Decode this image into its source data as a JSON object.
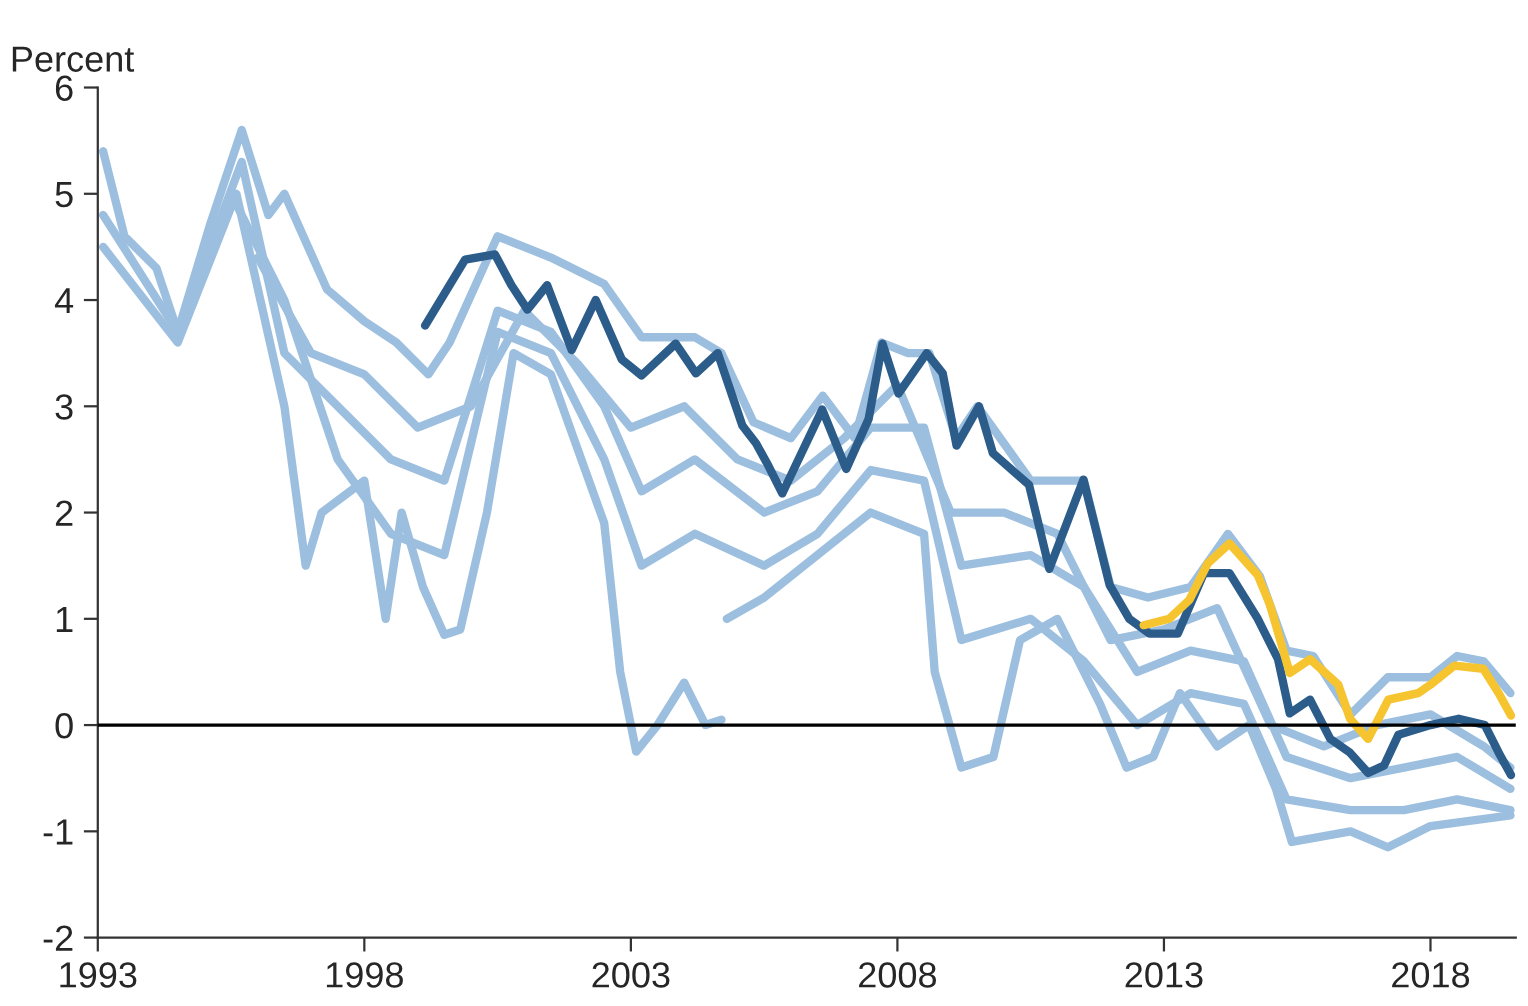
{
  "chart_data": {
    "type": "line",
    "ylabel": "Percent",
    "xlim": [
      1993,
      2019.6
    ],
    "xticks": [
      1993,
      1998,
      2003,
      2008,
      2013,
      2018
    ],
    "ylim": [
      -2,
      6
    ],
    "yticks": [
      {
        "value": -2,
        "label": "-2"
      },
      {
        "value": -1,
        "label": "-1"
      },
      0,
      1,
      2,
      3,
      4,
      5,
      6
    ],
    "grid": false,
    "legend": false,
    "marker": "none",
    "line_style": "solid",
    "ref_lines": [
      {
        "axis": "y",
        "value": 0,
        "color": "#000000"
      }
    ],
    "series": [
      {
        "color": "#9dbfdf",
        "x": [
          1993.1,
          1993.5,
          1994.1,
          1994.5,
          1995.1,
          1995.7,
          1996.2,
          1996.5,
          1997.3,
          1998.0,
          1998.6,
          1999.2,
          1999.6,
          2000.5,
          2001.5,
          2002.5,
          2003.2,
          2004.2,
          2004.7,
          2005.3,
          2006.0,
          2006.6,
          2007.2,
          2007.7,
          2008.2,
          2008.6,
          2009.1,
          2009.5,
          2010.5,
          2011.5,
          2012.0,
          2012.7,
          2013.5,
          2014.2,
          2014.8,
          2015.3,
          2015.8,
          2016.5,
          2017.2,
          2018.0,
          2018.5,
          2019.0,
          2019.5
        ],
        "values": [
          5.4,
          4.6,
          4.3,
          3.7,
          4.7,
          5.6,
          4.8,
          5.0,
          4.1,
          3.8,
          3.6,
          3.3,
          3.6,
          4.6,
          4.4,
          4.15,
          3.65,
          3.65,
          3.5,
          2.85,
          2.7,
          3.1,
          2.7,
          3.6,
          3.5,
          3.5,
          2.7,
          3.0,
          2.3,
          2.3,
          1.3,
          1.2,
          1.3,
          1.8,
          1.4,
          0.7,
          0.65,
          0.1,
          0.45,
          0.45,
          0.65,
          0.6,
          0.3
        ]
      },
      {
        "color": "#9dbfdf",
        "x": [
          1993.1,
          1994.5,
          1995.6,
          1996.5,
          1996.9,
          1997.2,
          1998.0,
          1998.4,
          1998.7,
          1999.1,
          1999.5,
          1999.8,
          2000.3,
          2000.8,
          2001.5,
          2002.0,
          2002.5,
          2002.8,
          2003.1,
          2003.5,
          2004.0,
          2004.4,
          2004.7
        ],
        "values": [
          4.5,
          3.6,
          5.0,
          3.0,
          1.5,
          2.0,
          2.3,
          1.0,
          2.0,
          1.3,
          0.85,
          0.9,
          2.0,
          3.5,
          3.3,
          2.6,
          1.9,
          0.5,
          -0.25,
          0.0,
          0.4,
          0.0,
          0.05
        ]
      },
      {
        "color": "#9dbfdf",
        "x": [
          2004.8,
          2005.5,
          2006.5,
          2007.5,
          2008.5,
          2008.7,
          2009.2,
          2009.8,
          2010.3,
          2011.0,
          2011.8,
          2012.3,
          2012.8,
          2013.3,
          2014.0,
          2014.6,
          2015.1,
          2015.4,
          2016.5,
          2017.2,
          2018.0,
          2019.5
        ],
        "values": [
          1.0,
          1.2,
          1.6,
          2.0,
          1.8,
          0.5,
          -0.4,
          -0.3,
          0.8,
          1.0,
          0.2,
          -0.4,
          -0.3,
          0.3,
          -0.2,
          0.0,
          -0.6,
          -1.1,
          -1.0,
          -1.15,
          -0.95,
          -0.85
        ]
      },
      {
        "color": "#9dbfdf",
        "x": [
          1993.1,
          1994.5,
          1995.7,
          1996.5,
          1997.5,
          1998.5,
          1999.5,
          2000.5,
          2001.5,
          2002.5,
          2003.2,
          2004.2,
          2005.5,
          2006.5,
          2007.5,
          2008.5,
          2009.2,
          2010.5,
          2011.5,
          2012.5,
          2013.5,
          2014.5,
          2015.3,
          2016.5,
          2017.5,
          2018.5,
          2019.5
        ],
        "values": [
          4.8,
          3.7,
          5.3,
          3.5,
          3.0,
          2.5,
          2.3,
          3.9,
          3.7,
          3.0,
          2.2,
          2.5,
          2.0,
          2.2,
          2.8,
          2.8,
          1.5,
          1.6,
          1.3,
          0.5,
          0.7,
          0.6,
          -0.3,
          -0.5,
          -0.4,
          -0.3,
          -0.6
        ]
      },
      {
        "color": "#9dbfdf",
        "x": [
          1995.5,
          1996.5,
          1997.5,
          1998.5,
          1999.5,
          2000.5,
          2001.5,
          2002.5,
          2003.2,
          2004.2,
          2005.5,
          2006.5,
          2007.5,
          2008.5,
          2009.2,
          2010.5,
          2011.5,
          2012.5,
          2013.5,
          2014.5,
          2015.3,
          2016.5,
          2017.5,
          2018.5,
          2019.5
        ],
        "values": [
          5.0,
          4.0,
          2.5,
          1.8,
          1.6,
          3.7,
          3.5,
          2.5,
          1.5,
          1.8,
          1.5,
          1.8,
          2.4,
          2.3,
          0.8,
          1.0,
          0.6,
          0.0,
          0.3,
          0.2,
          -0.7,
          -0.8,
          -0.8,
          -0.7,
          -0.8
        ]
      },
      {
        "color": "#9dbfdf",
        "x": [
          1996,
          1997,
          1998,
          1999,
          2000,
          2001,
          2002,
          2003,
          2004,
          2005,
          2006,
          2007,
          2008,
          2009,
          2010,
          2011,
          2012,
          2013,
          2014,
          2015,
          2016,
          2017,
          2018,
          2019,
          2019.5
        ],
        "values": [
          4.4,
          3.5,
          3.3,
          2.8,
          3.0,
          3.9,
          3.4,
          2.8,
          3.0,
          2.5,
          2.3,
          2.7,
          3.2,
          2.0,
          2.0,
          1.8,
          0.8,
          0.9,
          1.1,
          0.0,
          -0.2,
          0.0,
          0.1,
          -0.2,
          -0.4
        ]
      },
      {
        "color": "#2c5d8a",
        "x": [
          1999.14,
          1999.89,
          2000.45,
          2000.76,
          2001.06,
          2001.43,
          2001.89,
          2002.34,
          2002.83,
          2003.2,
          2003.84,
          2004.22,
          2004.63,
          2005.09,
          2005.35,
          2005.58,
          2005.84,
          2006.59,
          2007.04,
          2007.46,
          2007.72,
          2008.02,
          2008.55,
          2008.85,
          2009.11,
          2009.53,
          2009.79,
          2010.47,
          2010.85,
          2011.49,
          2011.98,
          2012.35,
          2012.73,
          2013.26,
          2013.75,
          2014.23,
          2014.76,
          2015.14,
          2015.36,
          2015.74,
          2016.12,
          2016.49,
          2016.83,
          2017.13,
          2017.4,
          2018.0,
          2018.53,
          2019.02,
          2019.28,
          2019.51
        ],
        "values": [
          3.76,
          4.38,
          4.43,
          4.14,
          3.91,
          4.14,
          3.53,
          4.0,
          3.44,
          3.29,
          3.59,
          3.31,
          3.5,
          2.82,
          2.65,
          2.44,
          2.18,
          2.97,
          2.41,
          2.88,
          3.59,
          3.12,
          3.5,
          3.31,
          2.63,
          3.0,
          2.56,
          2.26,
          1.47,
          2.31,
          1.32,
          1.0,
          0.86,
          0.86,
          1.43,
          1.43,
          1.0,
          0.62,
          0.11,
          0.24,
          -0.13,
          -0.26,
          -0.45,
          -0.38,
          -0.09,
          0.0,
          0.06,
          0.0,
          -0.26,
          -0.47
        ]
      },
      {
        "color": "#f6c42f",
        "x": [
          2012.62,
          2013.1,
          2013.48,
          2013.82,
          2014.23,
          2014.76,
          2014.99,
          2015.36,
          2015.74,
          2016.27,
          2016.49,
          2016.83,
          2017.21,
          2017.77,
          2018.0,
          2018.45,
          2018.99,
          2019.28,
          2019.51
        ],
        "values": [
          0.94,
          1.0,
          1.18,
          1.52,
          1.71,
          1.41,
          1.13,
          0.49,
          0.62,
          0.38,
          0.06,
          -0.13,
          0.24,
          0.3,
          0.38,
          0.56,
          0.53,
          0.3,
          0.09
        ]
      }
    ]
  }
}
